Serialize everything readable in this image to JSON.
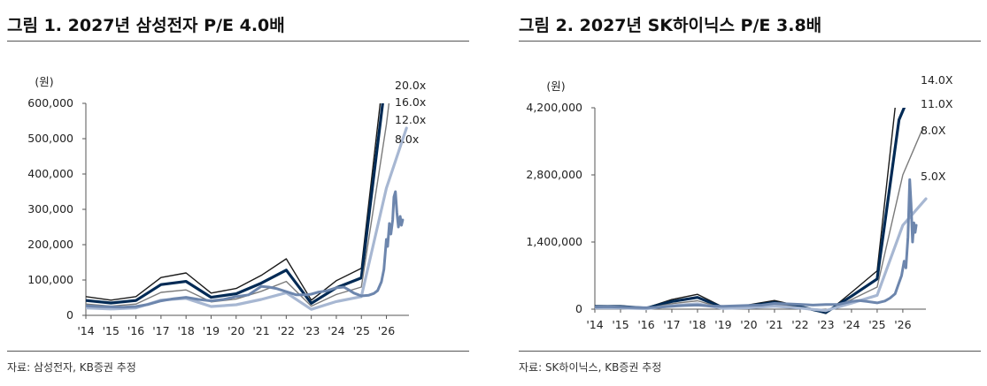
{
  "chart_data": [
    {
      "type": "line",
      "title": "그림 1. 2027년 삼성전자 P/E 4.0배",
      "unit_label": "(원)",
      "source": "자료: 삼성전자, KB증권 추정",
      "x_tick_labels": [
        "'14",
        "'15",
        "'16",
        "'17",
        "'18",
        "'19",
        "'20",
        "'21",
        "'22",
        "'23",
        "'24",
        "'25",
        "'26"
      ],
      "x_range": [
        2014.0,
        2026.9
      ],
      "ylim": [
        0,
        600000
      ],
      "y_ticks": [
        0,
        100000,
        200000,
        300000,
        400000,
        500000,
        600000
      ],
      "y_tick_labels": [
        "0",
        "100,000",
        "200,000",
        "300,000",
        "400,000",
        "500,000",
        "600,000"
      ],
      "grid": false,
      "series": [
        {
          "name": "20.0x",
          "color": "#1a1a1a",
          "width": 1.4,
          "points": [
            [
              2014.0,
              53000
            ],
            [
              2015.0,
              43000
            ],
            [
              2016.0,
              53000
            ],
            [
              2017.0,
              107000
            ],
            [
              2018.0,
              120000
            ],
            [
              2019.0,
              63000
            ],
            [
              2020.0,
              76000
            ],
            [
              2021.0,
              113000
            ],
            [
              2022.0,
              160000
            ],
            [
              2023.0,
              43000
            ],
            [
              2024.0,
              98000
            ],
            [
              2025.0,
              133000
            ],
            [
              2025.75,
              600000
            ]
          ]
        },
        {
          "name": "16.0x",
          "color": "#002a55",
          "width": 3.2,
          "points": [
            [
              2014.0,
              42000
            ],
            [
              2015.0,
              35000
            ],
            [
              2016.0,
              42000
            ],
            [
              2017.0,
              87000
            ],
            [
              2018.0,
              96000
            ],
            [
              2019.0,
              51000
            ],
            [
              2020.0,
              61000
            ],
            [
              2021.0,
              91000
            ],
            [
              2022.0,
              128000
            ],
            [
              2023.0,
              34000
            ],
            [
              2024.0,
              78000
            ],
            [
              2025.0,
              106000
            ],
            [
              2025.85,
              600000
            ]
          ]
        },
        {
          "name": "12.0x",
          "color": "#7a7a7a",
          "width": 1.4,
          "points": [
            [
              2014.0,
              32000
            ],
            [
              2015.0,
              26000
            ],
            [
              2016.0,
              32000
            ],
            [
              2017.0,
              65000
            ],
            [
              2018.0,
              72000
            ],
            [
              2019.0,
              38000
            ],
            [
              2020.0,
              46000
            ],
            [
              2021.0,
              68000
            ],
            [
              2022.0,
              96000
            ],
            [
              2023.0,
              26000
            ],
            [
              2024.0,
              59000
            ],
            [
              2025.0,
              80000
            ],
            [
              2026.0,
              540000
            ],
            [
              2026.1,
              600000
            ]
          ]
        },
        {
          "name": "8.0x",
          "color": "#a7b7d2",
          "width": 3.2,
          "points": [
            [
              2014.0,
              21000
            ],
            [
              2015.0,
              18000
            ],
            [
              2016.0,
              21000
            ],
            [
              2017.0,
              43000
            ],
            [
              2018.0,
              48000
            ],
            [
              2019.0,
              25000
            ],
            [
              2020.0,
              30000
            ],
            [
              2021.0,
              45000
            ],
            [
              2022.0,
              64000
            ],
            [
              2023.0,
              17000
            ],
            [
              2024.0,
              39000
            ],
            [
              2025.0,
              53000
            ],
            [
              2026.0,
              360000
            ],
            [
              2026.8,
              530000
            ]
          ]
        },
        {
          "name": "",
          "color": "#6d86ad",
          "width": 3.0,
          "points": [
            [
              2014.0,
              27000
            ],
            [
              2014.5,
              25000
            ],
            [
              2015.0,
              24000
            ],
            [
              2015.5,
              23000
            ],
            [
              2016.0,
              25000
            ],
            [
              2016.5,
              31000
            ],
            [
              2017.0,
              41000
            ],
            [
              2017.5,
              47000
            ],
            [
              2018.0,
              51000
            ],
            [
              2018.5,
              45000
            ],
            [
              2019.0,
              41000
            ],
            [
              2019.5,
              45000
            ],
            [
              2020.0,
              53000
            ],
            [
              2020.5,
              58000
            ],
            [
              2021.0,
              82000
            ],
            [
              2021.3,
              80000
            ],
            [
              2021.6,
              76000
            ],
            [
              2022.0,
              67000
            ],
            [
              2022.4,
              58000
            ],
            [
              2022.8,
              58000
            ],
            [
              2023.0,
              60000
            ],
            [
              2023.3,
              66000
            ],
            [
              2023.6,
              69000
            ],
            [
              2024.0,
              78000
            ],
            [
              2024.3,
              80000
            ],
            [
              2024.5,
              72000
            ],
            [
              2024.7,
              63000
            ],
            [
              2025.0,
              55000
            ],
            [
              2025.3,
              57000
            ],
            [
              2025.5,
              62000
            ],
            [
              2025.65,
              70000
            ],
            [
              2025.8,
              95000
            ],
            [
              2025.9,
              130000
            ],
            [
              2026.0,
              215000
            ],
            [
              2026.05,
              195000
            ],
            [
              2026.12,
              260000
            ],
            [
              2026.18,
              230000
            ],
            [
              2026.25,
              270000
            ],
            [
              2026.3,
              335000
            ],
            [
              2026.36,
              350000
            ],
            [
              2026.42,
              290000
            ],
            [
              2026.48,
              250000
            ],
            [
              2026.55,
              280000
            ],
            [
              2026.6,
              255000
            ],
            [
              2026.65,
              270000
            ]
          ]
        }
      ],
      "end_labels": [
        "20.0x",
        "16.0x",
        "12.0x",
        "8.0x"
      ]
    },
    {
      "type": "line",
      "title": "그림 2. 2027년 SK하이닉스 P/E 3.8배",
      "unit_label": "(원)",
      "source": "자료: SK하이닉스, KB증권 추정",
      "x_tick_labels": [
        "'14",
        "'15",
        "'16",
        "'17",
        "'18",
        "'19",
        "'20",
        "'21",
        "'22",
        "'23",
        "'24",
        "'25",
        "'26"
      ],
      "x_range": [
        2014.0,
        2026.9
      ],
      "ylim": [
        0,
        4200000
      ],
      "y_ticks": [
        0,
        1400000,
        2800000,
        4200000
      ],
      "y_tick_labels": [
        "0",
        "1,400,000",
        "2,800,000",
        "4,200,000"
      ],
      "grid": false,
      "series": [
        {
          "name": "14.0X",
          "color": "#1a1a1a",
          "width": 1.4,
          "points": [
            [
              2014.0,
              70000
            ],
            [
              2015.0,
              70000
            ],
            [
              2016.0,
              25000
            ],
            [
              2017.0,
              200000
            ],
            [
              2018.0,
              310000
            ],
            [
              2019.0,
              40000
            ],
            [
              2020.0,
              90000
            ],
            [
              2021.0,
              180000
            ],
            [
              2022.0,
              60000
            ],
            [
              2023.0,
              -90000
            ],
            [
              2024.0,
              350000
            ],
            [
              2025.0,
              800000
            ],
            [
              2025.7,
              4200000
            ]
          ]
        },
        {
          "name": "11.0X",
          "color": "#002a55",
          "width": 3.2,
          "points": [
            [
              2014.0,
              55000
            ],
            [
              2015.0,
              55000
            ],
            [
              2016.0,
              20000
            ],
            [
              2017.0,
              160000
            ],
            [
              2018.0,
              245000
            ],
            [
              2019.0,
              30000
            ],
            [
              2020.0,
              70000
            ],
            [
              2021.0,
              140000
            ],
            [
              2022.0,
              50000
            ],
            [
              2023.0,
              -70000
            ],
            [
              2024.0,
              270000
            ],
            [
              2025.0,
              630000
            ],
            [
              2025.85,
              3950000
            ],
            [
              2026.05,
              4200000
            ]
          ]
        },
        {
          "name": "8.0X",
          "color": "#7a7a7a",
          "width": 1.4,
          "points": [
            [
              2014.0,
              40000
            ],
            [
              2015.0,
              40000
            ],
            [
              2016.0,
              15000
            ],
            [
              2017.0,
              115000
            ],
            [
              2018.0,
              175000
            ],
            [
              2019.0,
              22000
            ],
            [
              2020.0,
              50000
            ],
            [
              2021.0,
              100000
            ],
            [
              2022.0,
              35000
            ],
            [
              2023.0,
              -50000
            ],
            [
              2024.0,
              200000
            ],
            [
              2025.0,
              460000
            ],
            [
              2026.0,
              2800000
            ],
            [
              2026.8,
              3800000
            ]
          ]
        },
        {
          "name": "5.0X",
          "color": "#a7b7d2",
          "width": 3.2,
          "points": [
            [
              2014.0,
              25000
            ],
            [
              2015.0,
              25000
            ],
            [
              2016.0,
              10000
            ],
            [
              2017.0,
              72000
            ],
            [
              2018.0,
              110000
            ],
            [
              2019.0,
              14000
            ],
            [
              2020.0,
              30000
            ],
            [
              2021.0,
              62000
            ],
            [
              2022.0,
              22000
            ],
            [
              2023.0,
              -30000
            ],
            [
              2024.0,
              125000
            ],
            [
              2025.0,
              290000
            ],
            [
              2026.0,
              1750000
            ],
            [
              2026.9,
              2300000
            ]
          ]
        },
        {
          "name": "",
          "color": "#6d86ad",
          "width": 3.0,
          "points": [
            [
              2014.0,
              45000
            ],
            [
              2014.5,
              50000
            ],
            [
              2015.0,
              40000
            ],
            [
              2015.5,
              35000
            ],
            [
              2016.0,
              30000
            ],
            [
              2016.5,
              40000
            ],
            [
              2017.0,
              60000
            ],
            [
              2017.5,
              75000
            ],
            [
              2018.0,
              85000
            ],
            [
              2018.5,
              65000
            ],
            [
              2019.0,
              60000
            ],
            [
              2019.5,
              70000
            ],
            [
              2020.0,
              80000
            ],
            [
              2020.5,
              82000
            ],
            [
              2021.0,
              120000
            ],
            [
              2021.5,
              110000
            ],
            [
              2022.0,
              100000
            ],
            [
              2022.5,
              85000
            ],
            [
              2023.0,
              95000
            ],
            [
              2023.5,
              100000
            ],
            [
              2024.0,
              160000
            ],
            [
              2024.3,
              180000
            ],
            [
              2024.6,
              160000
            ],
            [
              2025.0,
              130000
            ],
            [
              2025.3,
              170000
            ],
            [
              2025.5,
              230000
            ],
            [
              2025.7,
              320000
            ],
            [
              2025.85,
              550000
            ],
            [
              2025.95,
              700000
            ],
            [
              2026.05,
              1000000
            ],
            [
              2026.12,
              860000
            ],
            [
              2026.2,
              1500000
            ],
            [
              2026.27,
              2700000
            ],
            [
              2026.32,
              2200000
            ],
            [
              2026.38,
              1400000
            ],
            [
              2026.43,
              1800000
            ],
            [
              2026.48,
              1600000
            ],
            [
              2026.52,
              1750000
            ]
          ]
        }
      ],
      "end_labels": [
        "14.0X",
        "11.0X",
        "8.0X",
        "5.0X"
      ]
    }
  ]
}
